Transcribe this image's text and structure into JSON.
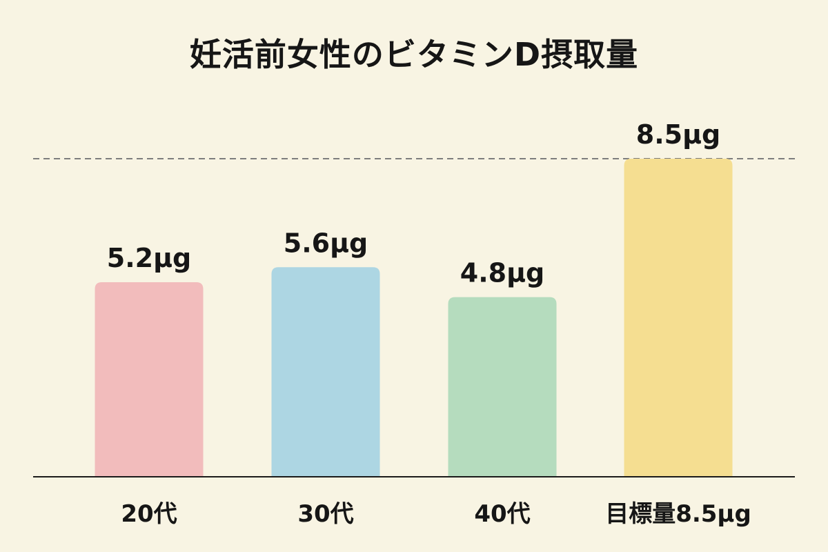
{
  "chart_data": {
    "type": "bar",
    "title": "妊活前女性のビタミンD摂取量",
    "xlabel": "",
    "ylabel": "",
    "categories": [
      "20代",
      "30代",
      "40代",
      "目標量8.5μg"
    ],
    "values": [
      5.2,
      5.6,
      4.8,
      8.5
    ],
    "value_labels": [
      "5.2μg",
      "5.6μg",
      "4.8μg",
      "8.5μg"
    ],
    "bar_colors": [
      "#f2bcbc",
      "#add6e3",
      "#b5dcbe",
      "#f5de91"
    ],
    "reference_line": {
      "value": 8.5,
      "style": "dashed",
      "color": "#7d7d7d"
    },
    "ylim": [
      0,
      9.2
    ],
    "grid": false,
    "legend": "none",
    "colors": {
      "background": "#f8f4e3",
      "text": "#161616",
      "baseline": "#1a1a1a"
    }
  }
}
